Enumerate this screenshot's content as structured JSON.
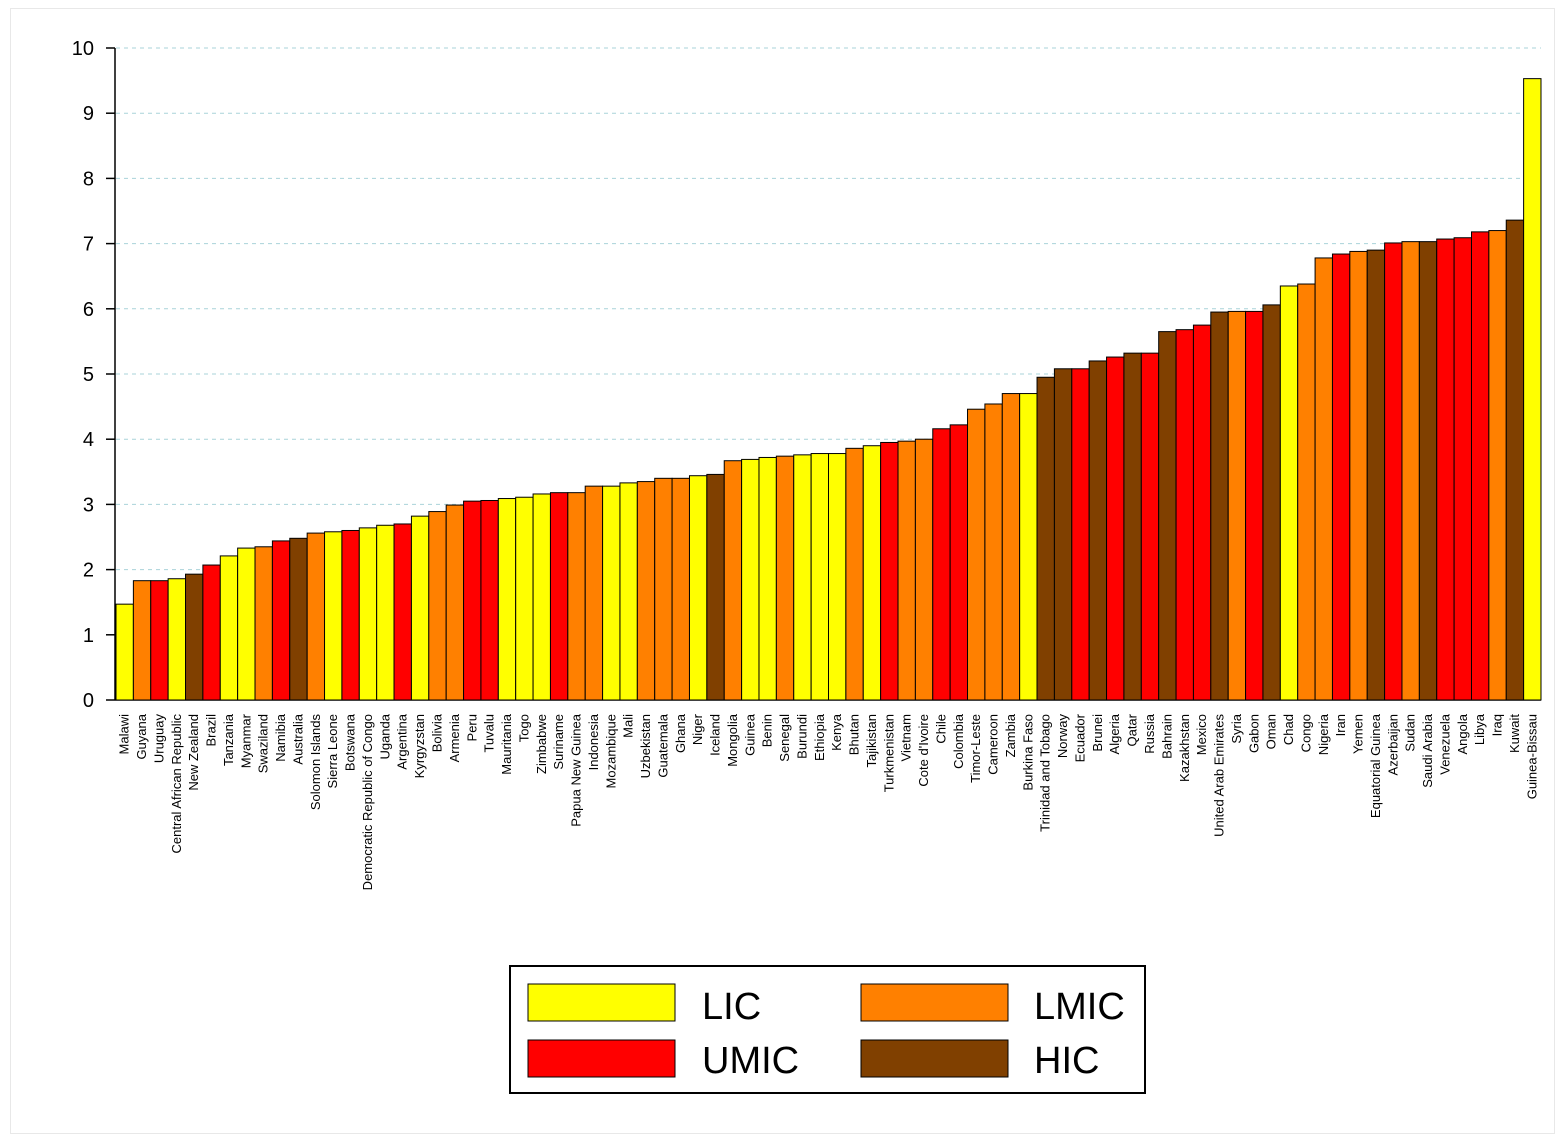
{
  "chart_data": {
    "type": "bar",
    "title": "",
    "xlabel": "",
    "ylabel": "",
    "ylim": [
      0,
      10
    ],
    "yticks": [
      0,
      1,
      2,
      3,
      4,
      5,
      6,
      7,
      8,
      9,
      10
    ],
    "grid": "horizontal dashed",
    "legend_position": "bottom-center",
    "colors": {
      "LIC": "#FFFF00",
      "LMIC": "#FF8000",
      "UMIC": "#FF0000",
      "HIC": "#804000"
    },
    "legend": [
      {
        "group": "LIC",
        "label": "LIC"
      },
      {
        "group": "LMIC",
        "label": "LMIC"
      },
      {
        "group": "UMIC",
        "label": "UMIC"
      },
      {
        "group": "HIC",
        "label": "HIC"
      }
    ],
    "categories": [
      "Malawi",
      "Guyana",
      "Uruguay",
      "Central African Republic",
      "New Zealand",
      "Brazil",
      "Tanzania",
      "Myanmar",
      "Swaziland",
      "Namibia",
      "Australia",
      "Solomon Islands",
      "Sierra Leone",
      "Botswana",
      "Democratic Republic of Congo",
      "Uganda",
      "Argentina",
      "Kyrgyzstan",
      "Bolivia",
      "Armenia",
      "Peru",
      "Tuvalu",
      "Mauritania",
      "Togo",
      "Zimbabwe",
      "Suriname",
      "Papua New Guinea",
      "Indonesia",
      "Mozambique",
      "Mali",
      "Uzbekistan",
      "Guatemala",
      "Ghana",
      "Niger",
      "Iceland",
      "Mongolia",
      "Guinea",
      "Benin",
      "Senegal",
      "Burundi",
      "Ethiopia",
      "Kenya",
      "Bhutan",
      "Tajikistan",
      "Turkmenistan",
      "Vietnam",
      "Cote d'Ivoire",
      "Chile",
      "Colombia",
      "Timor-Leste",
      "Cameroon",
      "Zambia",
      "Burkina Faso",
      "Trinidad and Tobago",
      "Norway",
      "Ecuador",
      "Brunei",
      "Algeria",
      "Qatar",
      "Russia",
      "Bahrain",
      "Kazakhstan",
      "Mexico",
      "United Arab Emirates",
      "Syria",
      "Gabon",
      "Oman",
      "Chad",
      "Congo",
      "Nigeria",
      "Iran",
      "Yemen",
      "Equatorial Guinea",
      "Azerbaijan",
      "Sudan",
      "Saudi Arabia",
      "Venezuela",
      "Angola",
      "Libya",
      "Iraq",
      "Kuwait",
      "Guinea-Bissau"
    ],
    "values": [
      1.47,
      1.83,
      1.83,
      1.86,
      1.93,
      2.07,
      2.21,
      2.33,
      2.35,
      2.44,
      2.48,
      2.56,
      2.58,
      2.6,
      2.64,
      2.68,
      2.7,
      2.82,
      2.89,
      2.99,
      3.05,
      3.06,
      3.09,
      3.11,
      3.16,
      3.18,
      3.18,
      3.28,
      3.28,
      3.33,
      3.35,
      3.4,
      3.4,
      3.44,
      3.46,
      3.67,
      3.69,
      3.72,
      3.74,
      3.76,
      3.78,
      3.78,
      3.86,
      3.9,
      3.95,
      3.97,
      4.0,
      4.16,
      4.22,
      4.46,
      4.54,
      4.7,
      4.7,
      4.95,
      5.08,
      5.08,
      5.2,
      5.26,
      5.32,
      5.32,
      5.65,
      5.68,
      5.75,
      5.95,
      5.96,
      5.96,
      6.06,
      6.35,
      6.38,
      6.78,
      6.84,
      6.88,
      6.9,
      7.01,
      7.03,
      7.03,
      7.07,
      7.09,
      7.18,
      7.2,
      7.36,
      9.53
    ],
    "groups": [
      "LIC",
      "LMIC",
      "UMIC",
      "LIC",
      "HIC",
      "UMIC",
      "LIC",
      "LIC",
      "LMIC",
      "UMIC",
      "HIC",
      "LMIC",
      "LIC",
      "UMIC",
      "LIC",
      "LIC",
      "UMIC",
      "LIC",
      "LMIC",
      "LMIC",
      "UMIC",
      "UMIC",
      "LIC",
      "LIC",
      "LIC",
      "UMIC",
      "LMIC",
      "LMIC",
      "LIC",
      "LIC",
      "LMIC",
      "LMIC",
      "LMIC",
      "LIC",
      "HIC",
      "LMIC",
      "LIC",
      "LIC",
      "LMIC",
      "LIC",
      "LIC",
      "LIC",
      "LMIC",
      "LIC",
      "UMIC",
      "LMIC",
      "LMIC",
      "UMIC",
      "UMIC",
      "LMIC",
      "LMIC",
      "LMIC",
      "LIC",
      "HIC",
      "HIC",
      "UMIC",
      "HIC",
      "UMIC",
      "HIC",
      "UMIC",
      "HIC",
      "UMIC",
      "UMIC",
      "HIC",
      "LMIC",
      "UMIC",
      "HIC",
      "LIC",
      "LMIC",
      "LMIC",
      "UMIC",
      "LMIC",
      "HIC",
      "UMIC",
      "LMIC",
      "HIC",
      "UMIC",
      "UMIC",
      "UMIC",
      "LMIC",
      "HIC",
      "LIC"
    ]
  }
}
